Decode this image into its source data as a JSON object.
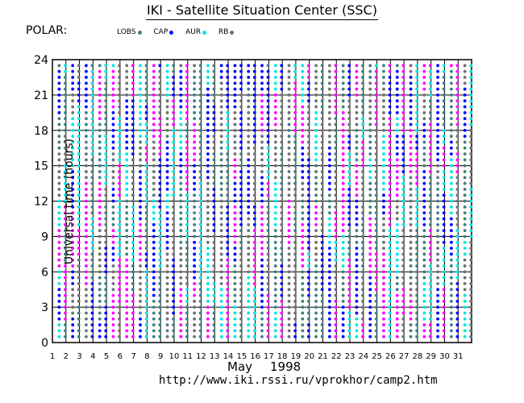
{
  "title": "IKI - Satellite Situation Center (SSC)",
  "satellite": "POLAR:",
  "legend": [
    {
      "label": "LOBS",
      "color": "#3f7f7f"
    },
    {
      "label": "CAP",
      "color": "#0000ff"
    },
    {
      "label": "AUR",
      "color": "#00e6e6"
    },
    {
      "label": "RB",
      "color": "#707070"
    }
  ],
  "extra_color": "#ff00ff",
  "footer": {
    "month": "May",
    "year": "1998",
    "url": "http://www.iki.rssi.ru/vprokhor/camp2.htm"
  },
  "chart_data": {
    "type": "scatter",
    "title": "IKI - Satellite Situation Center (SSC)",
    "ylabel": "Universal time (hours)",
    "xlabel": "May 1998",
    "ylim": [
      0,
      24
    ],
    "y_ticks": [
      "0",
      "3",
      "6",
      "9",
      "12",
      "15",
      "18",
      "21",
      "24"
    ],
    "x_ticks": [
      "1",
      "2",
      "3",
      "4",
      "5",
      "6",
      "7",
      "8",
      "9",
      "10",
      "11",
      "12",
      "13",
      "14",
      "15",
      "16",
      "17",
      "18",
      "19",
      "20",
      "21",
      "22",
      "23",
      "24",
      "25",
      "26",
      "27",
      "28",
      "29",
      "30",
      "31"
    ],
    "grid": true,
    "sample_step_hours": 0.5,
    "series_colors": [
      "#3f7f7f",
      "#0000ff",
      "#00e6e6",
      "#707070",
      "#ff00ff"
    ],
    "regions_note": "Each day shows two columns of dots colored by magnetospheric region along the orbit"
  }
}
